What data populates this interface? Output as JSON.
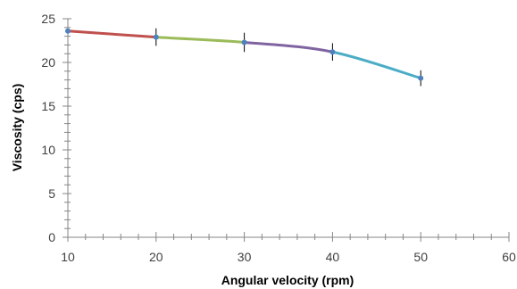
{
  "chart_data": {
    "type": "line",
    "xlabel": "Angular velocity (rpm)",
    "ylabel": "Viscosity (cps)",
    "xlim": [
      10,
      60
    ],
    "ylim": [
      0,
      25
    ],
    "x_ticks": [
      10,
      20,
      30,
      40,
      50,
      60
    ],
    "y_ticks": [
      0,
      5,
      10,
      15,
      20,
      25
    ],
    "x_minor_step": 2,
    "y_minor_step": 1,
    "grid": false,
    "points": [
      {
        "x": 10,
        "y": 23.6
      },
      {
        "x": 20,
        "y": 22.9
      },
      {
        "x": 30,
        "y": 22.3
      },
      {
        "x": 40,
        "y": 21.2
      },
      {
        "x": 50,
        "y": 18.2
      }
    ],
    "error": [
      0,
      1.0,
      1.1,
      1.0,
      0.9
    ],
    "segment_colors": [
      "#c0504d",
      "#9bbb59",
      "#8064a2",
      "#4bacc6"
    ],
    "point_color": "#4f81bd",
    "axis_color": "#868686"
  }
}
